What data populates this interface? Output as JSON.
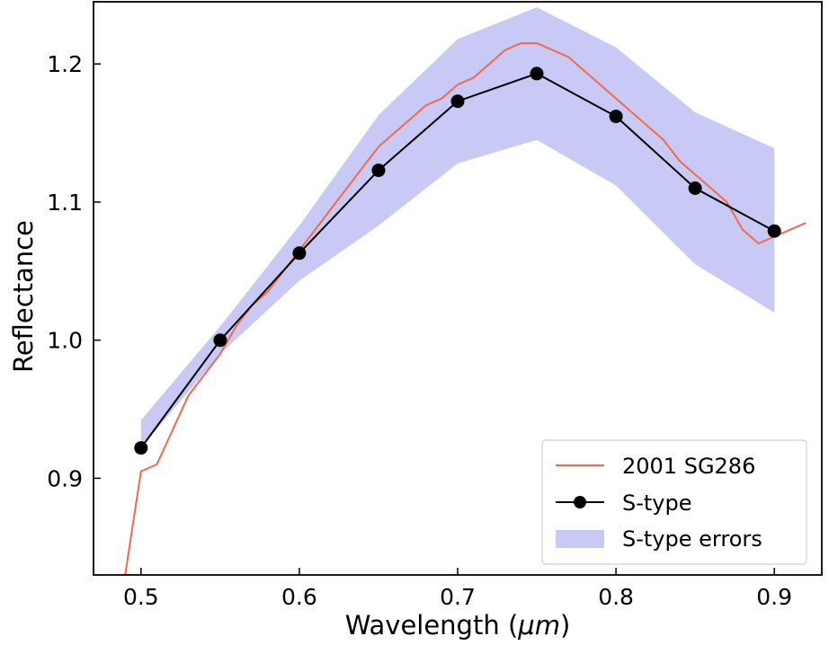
{
  "chart_data": {
    "type": "line",
    "title": "",
    "xlabel": "Wavelength (μm)",
    "xlabel_main": "Wavelength (",
    "xlabel_unit": "μm",
    "xlabel_close": ")",
    "ylabel": "Reflectance",
    "xlim": [
      0.47,
      0.93
    ],
    "ylim": [
      0.83,
      1.245
    ],
    "xticks": [
      0.5,
      0.6,
      0.7,
      0.8,
      0.9
    ],
    "xtick_labels": [
      "0.5",
      "0.6",
      "0.7",
      "0.8",
      "0.9"
    ],
    "yticks": [
      0.9,
      1.0,
      1.1,
      1.2
    ],
    "ytick_labels": [
      "0.9",
      "1.0",
      "1.1",
      "1.2"
    ],
    "grid": false,
    "legend_position": "bottom-right",
    "series": [
      {
        "name": "2001 SG286",
        "kind": "line",
        "color": "#f4694a",
        "x": [
          0.49,
          0.5,
          0.51,
          0.52,
          0.53,
          0.54,
          0.55,
          0.56,
          0.57,
          0.58,
          0.59,
          0.6,
          0.61,
          0.62,
          0.63,
          0.64,
          0.65,
          0.66,
          0.67,
          0.68,
          0.69,
          0.7,
          0.71,
          0.72,
          0.73,
          0.74,
          0.75,
          0.76,
          0.77,
          0.78,
          0.79,
          0.8,
          0.81,
          0.82,
          0.83,
          0.84,
          0.85,
          0.86,
          0.87,
          0.88,
          0.89,
          0.9,
          0.91,
          0.92
        ],
        "y": [
          0.83,
          0.905,
          0.91,
          0.935,
          0.96,
          0.975,
          0.99,
          1.01,
          1.025,
          1.035,
          1.05,
          1.065,
          1.08,
          1.095,
          1.11,
          1.125,
          1.14,
          1.15,
          1.16,
          1.17,
          1.175,
          1.185,
          1.19,
          1.2,
          1.21,
          1.215,
          1.215,
          1.21,
          1.205,
          1.195,
          1.185,
          1.175,
          1.165,
          1.155,
          1.145,
          1.13,
          1.12,
          1.11,
          1.1,
          1.08,
          1.07,
          1.075,
          1.08,
          1.085
        ]
      },
      {
        "name": "S-type",
        "kind": "line-marker",
        "color": "#000000",
        "x": [
          0.5,
          0.55,
          0.6,
          0.65,
          0.7,
          0.75,
          0.8,
          0.85,
          0.9
        ],
        "y": [
          0.922,
          1.0,
          1.063,
          1.123,
          1.173,
          1.193,
          1.162,
          1.11,
          1.079
        ]
      },
      {
        "name": "S-type errors",
        "kind": "band",
        "color": "#c9c9f5",
        "x": [
          0.5,
          0.55,
          0.6,
          0.65,
          0.7,
          0.75,
          0.8,
          0.85,
          0.9
        ],
        "lower": [
          0.922,
          0.99,
          1.043,
          1.083,
          1.128,
          1.145,
          1.112,
          1.055,
          1.02
        ],
        "upper": [
          0.942,
          1.01,
          1.083,
          1.163,
          1.218,
          1.241,
          1.212,
          1.165,
          1.139
        ]
      }
    ]
  }
}
